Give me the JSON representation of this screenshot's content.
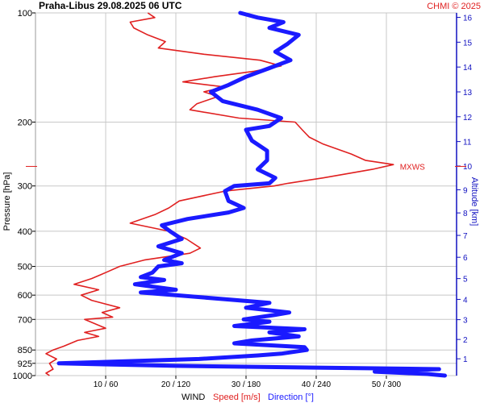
{
  "header": {
    "title": "Praha-Libus    29.08.2025 06 UTC",
    "credit": "CHMI © 2025"
  },
  "colors": {
    "speed": "#e02020",
    "direction": "#1a1aff",
    "grid": "#c8c8c8",
    "axis_right": "#1010c0",
    "text": "#000000"
  },
  "chart_data": {
    "type": "line",
    "title": "Praha-Libus    29.08.2025 06 UTC",
    "y_axis_left": {
      "label": "Pressure [hPa]",
      "scale": "log",
      "range_hPa": [
        1000,
        100
      ],
      "ticks": [
        100,
        200,
        300,
        400,
        500,
        600,
        700,
        850,
        925,
        1000
      ]
    },
    "y_axis_right": {
      "label": "Altitude [km]",
      "ticks": [
        1,
        2,
        3,
        4,
        5,
        6,
        7,
        8,
        9,
        10,
        11,
        12,
        13,
        14,
        15,
        16
      ]
    },
    "x_axis": {
      "title": "WIND",
      "speed_label": "Speed [m/s]",
      "direction_label": "Direction [°]",
      "speed_range_ms": [
        0,
        60
      ],
      "direction_range_deg": [
        0,
        360
      ],
      "tick_labels": [
        "10 / 60",
        "20 / 120",
        "30 / 180",
        "40 / 240",
        "50 / 300"
      ]
    },
    "annotation": {
      "text": "MXWS",
      "pressure_hPa": 265
    },
    "series": [
      {
        "name": "Speed [m/s]",
        "units": "m/s",
        "points": [
          [
            1000,
            2
          ],
          [
            985,
            1.5
          ],
          [
            960,
            2.5
          ],
          [
            925,
            2
          ],
          [
            900,
            3
          ],
          [
            870,
            1.5
          ],
          [
            850,
            2.5
          ],
          [
            830,
            4
          ],
          [
            800,
            6
          ],
          [
            780,
            9
          ],
          [
            760,
            7
          ],
          [
            740,
            10
          ],
          [
            700,
            7
          ],
          [
            690,
            11
          ],
          [
            670,
            9.5
          ],
          [
            650,
            12
          ],
          [
            620,
            8
          ],
          [
            600,
            6.5
          ],
          [
            580,
            9
          ],
          [
            560,
            5.5
          ],
          [
            540,
            8
          ],
          [
            520,
            10
          ],
          [
            500,
            12
          ],
          [
            480,
            15.5
          ],
          [
            460,
            22
          ],
          [
            445,
            23.5
          ],
          [
            420,
            21.5
          ],
          [
            400,
            19
          ],
          [
            380,
            13.5
          ],
          [
            360,
            17
          ],
          [
            345,
            19
          ],
          [
            330,
            20.5
          ],
          [
            310,
            27
          ],
          [
            300,
            34
          ],
          [
            295,
            36
          ],
          [
            285,
            41
          ],
          [
            270,
            48
          ],
          [
            262,
            51
          ],
          [
            255,
            47
          ],
          [
            245,
            45
          ],
          [
            230,
            41
          ],
          [
            220,
            39
          ],
          [
            210,
            38
          ],
          [
            200,
            37
          ],
          [
            195,
            29
          ],
          [
            185,
            22
          ],
          [
            178,
            23
          ],
          [
            170,
            26
          ],
          [
            165,
            24
          ],
          [
            160,
            27
          ],
          [
            155,
            21
          ],
          [
            150,
            25.5
          ],
          [
            145,
            31
          ],
          [
            140,
            35
          ],
          [
            135,
            32
          ],
          [
            130,
            24
          ],
          [
            125,
            17.5
          ],
          [
            120,
            18.5
          ],
          [
            115,
            16
          ],
          [
            110,
            14
          ],
          [
            106,
            13.5
          ],
          [
            103,
            17
          ],
          [
            100,
            16
          ]
        ]
      },
      {
        "name": "Direction [°]",
        "units": "deg",
        "points": [
          [
            1000,
            350
          ],
          [
            990,
            335
          ],
          [
            975,
            290
          ],
          [
            960,
            345
          ],
          [
            940,
            120
          ],
          [
            925,
            20
          ],
          [
            900,
            140
          ],
          [
            880,
            190
          ],
          [
            870,
            210
          ],
          [
            850,
            232
          ],
          [
            835,
            230
          ],
          [
            815,
            170
          ],
          [
            800,
            185
          ],
          [
            780,
            225
          ],
          [
            760,
            200
          ],
          [
            745,
            230
          ],
          [
            730,
            170
          ],
          [
            710,
            200
          ],
          [
            700,
            178
          ],
          [
            680,
            205
          ],
          [
            670,
            217
          ],
          [
            650,
            180
          ],
          [
            630,
            200
          ],
          [
            615,
            160
          ],
          [
            600,
            120
          ],
          [
            590,
            90
          ],
          [
            580,
            120
          ],
          [
            560,
            85
          ],
          [
            545,
            110
          ],
          [
            535,
            90
          ],
          [
            520,
            100
          ],
          [
            500,
            105
          ],
          [
            490,
            125
          ],
          [
            480,
            110
          ],
          [
            460,
            125
          ],
          [
            440,
            105
          ],
          [
            420,
            125
          ],
          [
            400,
            115
          ],
          [
            385,
            108
          ],
          [
            370,
            130
          ],
          [
            355,
            165
          ],
          [
            345,
            178
          ],
          [
            330,
            165
          ],
          [
            310,
            162
          ],
          [
            300,
            170
          ],
          [
            295,
            200
          ],
          [
            285,
            205
          ],
          [
            270,
            190
          ],
          [
            255,
            198
          ],
          [
            240,
            198
          ],
          [
            225,
            185
          ],
          [
            210,
            180
          ],
          [
            205,
            200
          ],
          [
            195,
            210
          ],
          [
            185,
            190
          ],
          [
            175,
            160
          ],
          [
            165,
            150
          ],
          [
            158,
            165
          ],
          [
            150,
            180
          ],
          [
            142,
            200
          ],
          [
            135,
            218
          ],
          [
            128,
            205
          ],
          [
            122,
            215
          ],
          [
            115,
            225
          ],
          [
            110,
            200
          ],
          [
            106,
            212
          ],
          [
            103,
            190
          ],
          [
            100,
            175
          ]
        ]
      }
    ]
  }
}
